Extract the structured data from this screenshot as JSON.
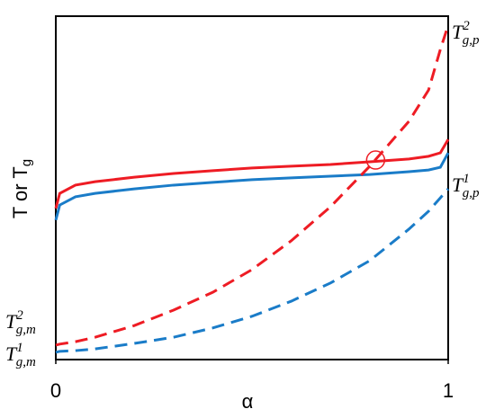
{
  "chart_data": {
    "type": "line",
    "xlabel": "α",
    "ylabel": {
      "text": "T or T",
      "sub": "g"
    },
    "xlim": [
      0,
      1
    ],
    "ylim": [
      0,
      100
    ],
    "xticks": [
      0,
      1
    ],
    "x": [
      0,
      0.01,
      0.05,
      0.1,
      0.2,
      0.3,
      0.4,
      0.5,
      0.6,
      0.7,
      0.8,
      0.9,
      0.95,
      0.98,
      1
    ],
    "series": [
      {
        "color": "#ee1c24",
        "dash": false,
        "values": [
          44.0,
          48.4,
          50.8,
          51.8,
          53.1,
          54.2,
          55.0,
          55.8,
          56.3,
          56.8,
          57.6,
          58.4,
          59.2,
          60.2,
          64.1
        ]
      },
      {
        "color": "#1a7cc8",
        "dash": false,
        "values": [
          40.6,
          45.0,
          47.4,
          48.4,
          49.7,
          50.8,
          51.6,
          52.4,
          52.9,
          53.4,
          53.9,
          54.7,
          55.2,
          56.0,
          60.2
        ]
      },
      {
        "color": "#ee1c24",
        "dash": true,
        "values": [
          4.2,
          4.5,
          5.2,
          6.5,
          9.9,
          14.4,
          19.6,
          26.2,
          34.6,
          44.5,
          56.3,
          69.4,
          78.5,
          90.3,
          97.4
        ]
      },
      {
        "color": "#1a7cc8",
        "dash": true,
        "values": [
          2.1,
          2.4,
          2.6,
          3.1,
          4.7,
          6.5,
          9.2,
          12.6,
          17.0,
          22.3,
          28.8,
          38.0,
          43.2,
          47.1,
          49.7
        ]
      }
    ],
    "marker": {
      "x": 0.815,
      "y": 58.1,
      "color": "#ee1c24"
    },
    "annotations": [
      {
        "base": "T",
        "sup": "2",
        "sub": "g,p"
      },
      {
        "base": "T",
        "sup": "1",
        "sub": "g,p"
      },
      {
        "base": "T",
        "sup": "2",
        "sub": "g,m"
      },
      {
        "base": "T",
        "sup": "1",
        "sub": "g,m"
      }
    ]
  }
}
